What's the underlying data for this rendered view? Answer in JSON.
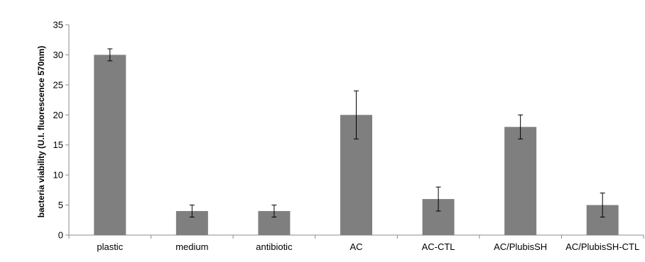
{
  "chart_data": {
    "type": "bar",
    "categories": [
      "plastic",
      "medium",
      "antibiotic",
      "AC",
      "AC-CTL",
      "AC/PlubisSH",
      "AC/PlubisSH-CTL"
    ],
    "values": [
      30,
      4,
      4,
      20,
      6,
      18,
      5
    ],
    "errors": [
      1,
      1,
      1,
      4,
      2,
      2,
      2
    ],
    "title": "",
    "xlabel": "",
    "ylabel": "bacteria viability (U.I. fluorescence 570nm)",
    "ylim": [
      0,
      35
    ],
    "yticks": [
      0,
      5,
      10,
      15,
      20,
      25,
      30,
      35
    ],
    "grid": false,
    "legend": "none",
    "bar_color": "#7f7f7f",
    "axis_color": "#8c8c8c"
  }
}
